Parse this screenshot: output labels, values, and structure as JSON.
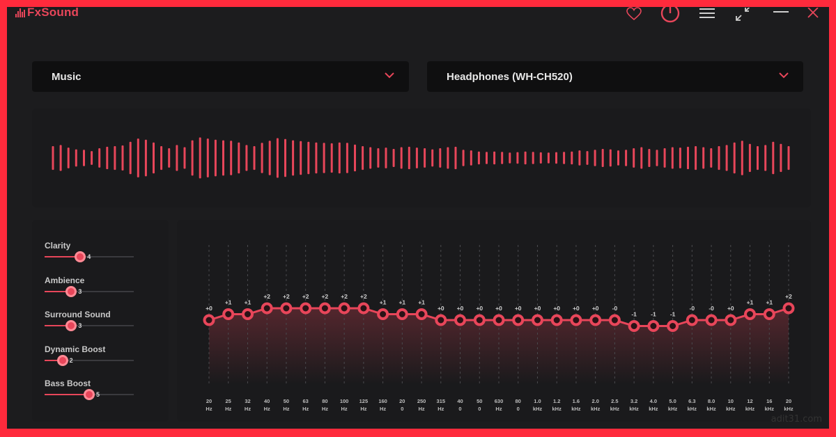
{
  "app": {
    "name": "FxSound",
    "accent": "#e8465a"
  },
  "titlebar": {
    "icons": [
      "heart-icon",
      "power-icon",
      "menu-icon",
      "minimize-window-icon",
      "minimize-icon",
      "close-icon"
    ]
  },
  "preset": {
    "value": "Music"
  },
  "output_device": {
    "value": "Headphones (WH-CH520)"
  },
  "effects": [
    {
      "label": "Clarity",
      "value": "4",
      "level": 0.4
    },
    {
      "label": "Ambience",
      "value": "3",
      "level": 0.3
    },
    {
      "label": "Surround Sound",
      "value": "3",
      "level": 0.3
    },
    {
      "label": "Dynamic Boost",
      "value": "2",
      "level": 0.2
    },
    {
      "label": "Bass Boost",
      "value": "5",
      "level": 0.5
    }
  ],
  "equalizer": {
    "bands": [
      {
        "f1": "20",
        "f2": "Hz",
        "gain": "+0",
        "level": 0
      },
      {
        "f1": "25",
        "f2": "Hz",
        "gain": "+1",
        "level": 1
      },
      {
        "f1": "32",
        "f2": "Hz",
        "gain": "+1",
        "level": 1
      },
      {
        "f1": "40",
        "f2": "Hz",
        "gain": "+2",
        "level": 2
      },
      {
        "f1": "50",
        "f2": "Hz",
        "gain": "+2",
        "level": 2
      },
      {
        "f1": "63",
        "f2": "Hz",
        "gain": "+2",
        "level": 2
      },
      {
        "f1": "80",
        "f2": "Hz",
        "gain": "+2",
        "level": 2
      },
      {
        "f1": "100",
        "f2": "Hz",
        "gain": "+2",
        "level": 2
      },
      {
        "f1": "125",
        "f2": "Hz",
        "gain": "+2",
        "level": 2
      },
      {
        "f1": "160",
        "f2": "Hz",
        "gain": "+1",
        "level": 1
      },
      {
        "f1": "20",
        "f2": "0",
        "gain": "+1",
        "level": 1
      },
      {
        "f1": "250",
        "f2": "Hz",
        "gain": "+1",
        "level": 1
      },
      {
        "f1": "315",
        "f2": "Hz",
        "gain": "+0",
        "level": 0
      },
      {
        "f1": "40",
        "f2": "0",
        "gain": "+0",
        "level": 0
      },
      {
        "f1": "50",
        "f2": "0",
        "gain": "+0",
        "level": 0
      },
      {
        "f1": "630",
        "f2": "Hz",
        "gain": "+0",
        "level": 0
      },
      {
        "f1": "80",
        "f2": "0",
        "gain": "+0",
        "level": 0
      },
      {
        "f1": "1.0",
        "f2": "kHz",
        "gain": "+0",
        "level": 0
      },
      {
        "f1": "1.2",
        "f2": "kHz",
        "gain": "+0",
        "level": 0
      },
      {
        "f1": "1.6",
        "f2": "kHz",
        "gain": "+0",
        "level": 0
      },
      {
        "f1": "2.0",
        "f2": "kHz",
        "gain": "+0",
        "level": 0
      },
      {
        "f1": "2.5",
        "f2": "kHz",
        "gain": "-0",
        "level": 0
      },
      {
        "f1": "3.2",
        "f2": "kHz",
        "gain": "-1",
        "level": -1
      },
      {
        "f1": "4.0",
        "f2": "kHz",
        "gain": "-1",
        "level": -1
      },
      {
        "f1": "5.0",
        "f2": "kHz",
        "gain": "-1",
        "level": -1
      },
      {
        "f1": "6.3",
        "f2": "kHz",
        "gain": "-0",
        "level": 0
      },
      {
        "f1": "8.0",
        "f2": "kHz",
        "gain": "-0",
        "level": 0
      },
      {
        "f1": "10",
        "f2": "kHz",
        "gain": "+0",
        "level": 0
      },
      {
        "f1": "12",
        "f2": "kHz",
        "gain": "+1",
        "level": 1
      },
      {
        "f1": "16",
        "f2": "kHz",
        "gain": "+1",
        "level": 1
      },
      {
        "f1": "20",
        "f2": "kHz",
        "gain": "+2",
        "level": 2
      }
    ]
  },
  "visualizer": {
    "levels": [
      0.55,
      0.6,
      0.48,
      0.4,
      0.38,
      0.32,
      0.45,
      0.52,
      0.55,
      0.58,
      0.75,
      0.9,
      0.85,
      0.72,
      0.55,
      0.45,
      0.6,
      0.5,
      0.82,
      0.95,
      0.9,
      0.85,
      0.82,
      0.8,
      0.72,
      0.6,
      0.55,
      0.7,
      0.8,
      0.92,
      0.88,
      0.82,
      0.78,
      0.75,
      0.72,
      0.7,
      0.68,
      0.72,
      0.7,
      0.62,
      0.55,
      0.5,
      0.45,
      0.48,
      0.42,
      0.5,
      0.52,
      0.48,
      0.45,
      0.4,
      0.45,
      0.5,
      0.52,
      0.38,
      0.35,
      0.3,
      0.28,
      0.3,
      0.28,
      0.25,
      0.27,
      0.3,
      0.28,
      0.26,
      0.25,
      0.27,
      0.28,
      0.3,
      0.35,
      0.32,
      0.38,
      0.42,
      0.4,
      0.35,
      0.38,
      0.45,
      0.5,
      0.42,
      0.38,
      0.45,
      0.5,
      0.48,
      0.52,
      0.55,
      0.5,
      0.45,
      0.55,
      0.6,
      0.72,
      0.8,
      0.65,
      0.55,
      0.6,
      0.75,
      0.65,
      0.55
    ]
  },
  "watermark": "adit31.com"
}
